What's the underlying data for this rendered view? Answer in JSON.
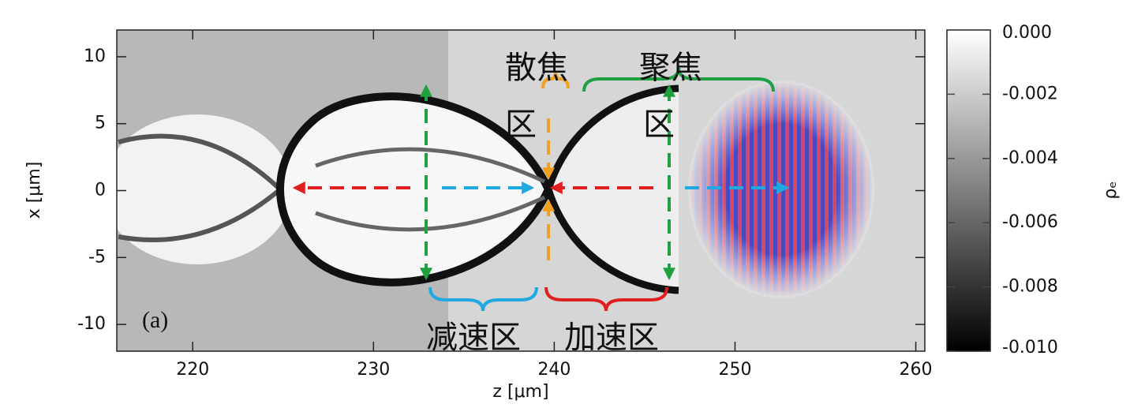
{
  "chart_data": {
    "type": "heatmap",
    "xlabel": "z [μm]",
    "ylabel": "x [μm]",
    "xlim": [
      215.8,
      260.5
    ],
    "xticks": [
      220,
      230,
      240,
      250,
      260
    ],
    "ylim": [
      -12,
      12
    ],
    "yticks": [
      -10,
      -5,
      0,
      5,
      10
    ],
    "colorbar": {
      "label": "ρₑ",
      "lim": [
        -0.01,
        0
      ],
      "ticks": [
        {
          "value": 0,
          "label": "0.000"
        },
        {
          "value": -0.002,
          "label": "-0.002"
        },
        {
          "value": -0.004,
          "label": "-0.004"
        },
        {
          "value": -0.006,
          "label": "-0.006"
        },
        {
          "value": -0.008,
          "label": "-0.008"
        },
        {
          "value": -0.01,
          "label": "-0.010"
        }
      ]
    },
    "annotations": [
      {
        "lines": [
          "(a)"
        ]
      },
      {
        "lines": [
          "散焦",
          "区"
        ]
      },
      {
        "lines": [
          "聚焦",
          "区"
        ]
      },
      {
        "lines": [
          "减速区"
        ]
      },
      {
        "lines": [
          "加速区"
        ]
      }
    ]
  }
}
